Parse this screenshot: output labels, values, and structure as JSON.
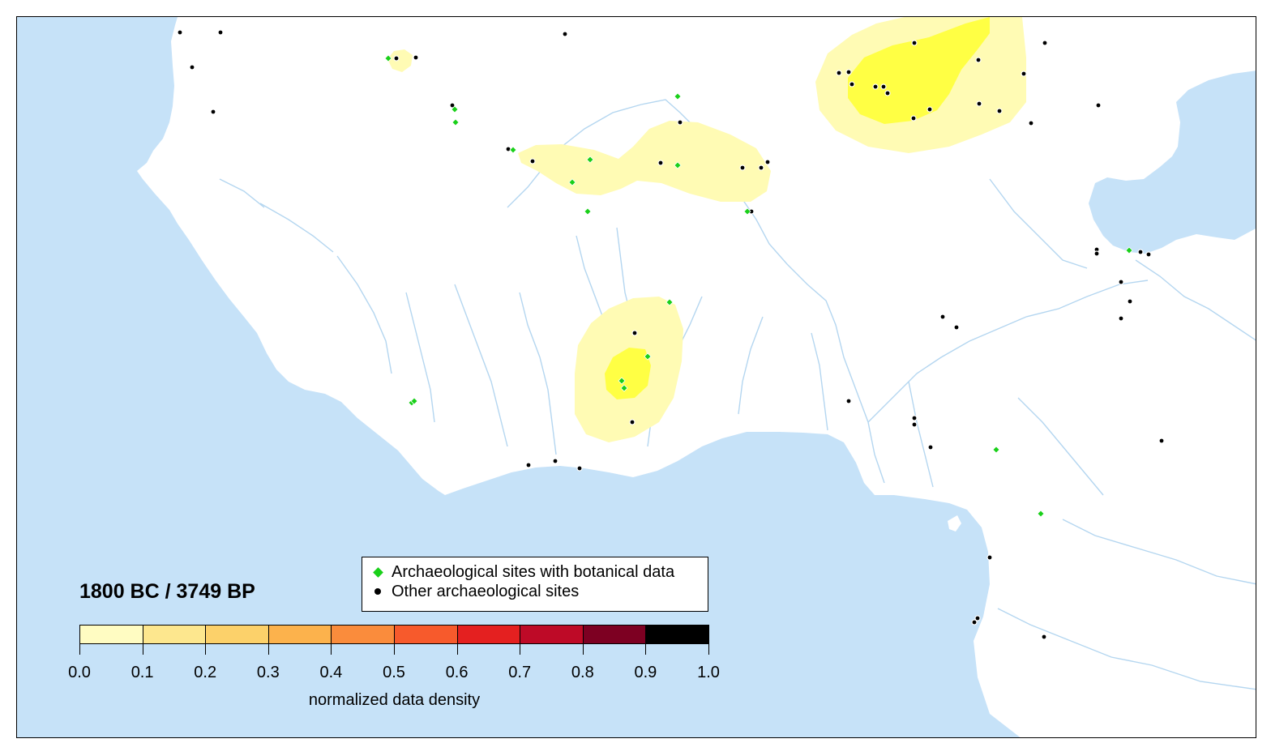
{
  "map": {
    "period_label": "1800 BC / 3749 BP",
    "colors": {
      "ocean": "#c6e2f8",
      "land": "#ffffff",
      "rivers": "#b4d6f0",
      "density_low": "#fffbb4",
      "density_mid": "#ffff44",
      "botanical_site": "#19d019",
      "other_site": "#000000"
    }
  },
  "legend": {
    "botanical": {
      "icon": "green-diamond",
      "label": "Archaeological sites with botanical data"
    },
    "other": {
      "icon": "black-dot",
      "label": "Other archaeological sites"
    }
  },
  "colorbar": {
    "ticks": [
      "0.0",
      "0.1",
      "0.2",
      "0.3",
      "0.4",
      "0.5",
      "0.6",
      "0.7",
      "0.8",
      "0.9",
      "1.0"
    ],
    "colors": [
      "#fffcc2",
      "#fde78e",
      "#fcd16a",
      "#fcb24c",
      "#fa8c3c",
      "#f75a2c",
      "#e42020",
      "#be0a27",
      "#7d0022",
      "#000000"
    ],
    "label": "normalized data density"
  }
}
